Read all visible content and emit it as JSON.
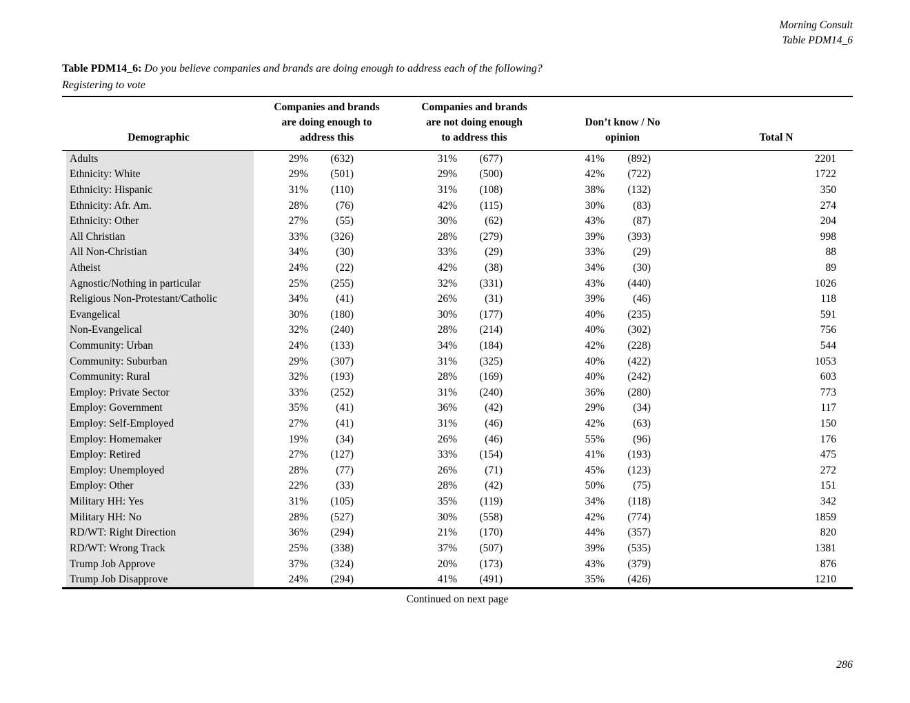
{
  "doc_header": {
    "source": "Morning Consult",
    "table_ref": "Table PDM14_6"
  },
  "title": {
    "label": "Table PDM14_6:",
    "question": "Do you believe companies and brands are doing enough to address each of the following?",
    "subtitle": "Registering to vote"
  },
  "table": {
    "headers": {
      "demographic": "Demographic",
      "col1": "Companies and brands\nare doing enough to\naddress this",
      "col2": "Companies and brands\nare not doing enough\nto address this",
      "col3": "Don’t know / No\nopinion",
      "total": "Total N"
    },
    "rows": [
      {
        "label": "Adults",
        "pct1": "29%",
        "n1": "(632)",
        "pct2": "31%",
        "n2": "(677)",
        "pct3": "41%",
        "n3": "(892)",
        "total": "2201"
      },
      {
        "label": "Ethnicity: White",
        "pct1": "29%",
        "n1": "(501)",
        "pct2": "29%",
        "n2": "(500)",
        "pct3": "42%",
        "n3": "(722)",
        "total": "1722"
      },
      {
        "label": "Ethnicity: Hispanic",
        "pct1": "31%",
        "n1": "(110)",
        "pct2": "31%",
        "n2": "(108)",
        "pct3": "38%",
        "n3": "(132)",
        "total": "350"
      },
      {
        "label": "Ethnicity: Afr. Am.",
        "pct1": "28%",
        "n1": "(76)",
        "pct2": "42%",
        "n2": "(115)",
        "pct3": "30%",
        "n3": "(83)",
        "total": "274"
      },
      {
        "label": "Ethnicity: Other",
        "pct1": "27%",
        "n1": "(55)",
        "pct2": "30%",
        "n2": "(62)",
        "pct3": "43%",
        "n3": "(87)",
        "total": "204"
      },
      {
        "label": "All Christian",
        "pct1": "33%",
        "n1": "(326)",
        "pct2": "28%",
        "n2": "(279)",
        "pct3": "39%",
        "n3": "(393)",
        "total": "998"
      },
      {
        "label": "All Non-Christian",
        "pct1": "34%",
        "n1": "(30)",
        "pct2": "33%",
        "n2": "(29)",
        "pct3": "33%",
        "n3": "(29)",
        "total": "88"
      },
      {
        "label": "Atheist",
        "pct1": "24%",
        "n1": "(22)",
        "pct2": "42%",
        "n2": "(38)",
        "pct3": "34%",
        "n3": "(30)",
        "total": "89"
      },
      {
        "label": "Agnostic/Nothing in particular",
        "pct1": "25%",
        "n1": "(255)",
        "pct2": "32%",
        "n2": "(331)",
        "pct3": "43%",
        "n3": "(440)",
        "total": "1026"
      },
      {
        "label": "Religious Non-Protestant/Catholic",
        "pct1": "34%",
        "n1": "(41)",
        "pct2": "26%",
        "n2": "(31)",
        "pct3": "39%",
        "n3": "(46)",
        "total": "118"
      },
      {
        "label": "Evangelical",
        "pct1": "30%",
        "n1": "(180)",
        "pct2": "30%",
        "n2": "(177)",
        "pct3": "40%",
        "n3": "(235)",
        "total": "591"
      },
      {
        "label": "Non-Evangelical",
        "pct1": "32%",
        "n1": "(240)",
        "pct2": "28%",
        "n2": "(214)",
        "pct3": "40%",
        "n3": "(302)",
        "total": "756"
      },
      {
        "label": "Community: Urban",
        "pct1": "24%",
        "n1": "(133)",
        "pct2": "34%",
        "n2": "(184)",
        "pct3": "42%",
        "n3": "(228)",
        "total": "544"
      },
      {
        "label": "Community: Suburban",
        "pct1": "29%",
        "n1": "(307)",
        "pct2": "31%",
        "n2": "(325)",
        "pct3": "40%",
        "n3": "(422)",
        "total": "1053"
      },
      {
        "label": "Community: Rural",
        "pct1": "32%",
        "n1": "(193)",
        "pct2": "28%",
        "n2": "(169)",
        "pct3": "40%",
        "n3": "(242)",
        "total": "603"
      },
      {
        "label": "Employ: Private Sector",
        "pct1": "33%",
        "n1": "(252)",
        "pct2": "31%",
        "n2": "(240)",
        "pct3": "36%",
        "n3": "(280)",
        "total": "773"
      },
      {
        "label": "Employ: Government",
        "pct1": "35%",
        "n1": "(41)",
        "pct2": "36%",
        "n2": "(42)",
        "pct3": "29%",
        "n3": "(34)",
        "total": "117"
      },
      {
        "label": "Employ: Self-Employed",
        "pct1": "27%",
        "n1": "(41)",
        "pct2": "31%",
        "n2": "(46)",
        "pct3": "42%",
        "n3": "(63)",
        "total": "150"
      },
      {
        "label": "Employ: Homemaker",
        "pct1": "19%",
        "n1": "(34)",
        "pct2": "26%",
        "n2": "(46)",
        "pct3": "55%",
        "n3": "(96)",
        "total": "176"
      },
      {
        "label": "Employ: Retired",
        "pct1": "27%",
        "n1": "(127)",
        "pct2": "33%",
        "n2": "(154)",
        "pct3": "41%",
        "n3": "(193)",
        "total": "475"
      },
      {
        "label": "Employ: Unemployed",
        "pct1": "28%",
        "n1": "(77)",
        "pct2": "26%",
        "n2": "(71)",
        "pct3": "45%",
        "n3": "(123)",
        "total": "272"
      },
      {
        "label": "Employ: Other",
        "pct1": "22%",
        "n1": "(33)",
        "pct2": "28%",
        "n2": "(42)",
        "pct3": "50%",
        "n3": "(75)",
        "total": "151"
      },
      {
        "label": "Military HH: Yes",
        "pct1": "31%",
        "n1": "(105)",
        "pct2": "35%",
        "n2": "(119)",
        "pct3": "34%",
        "n3": "(118)",
        "total": "342"
      },
      {
        "label": "Military HH: No",
        "pct1": "28%",
        "n1": "(527)",
        "pct2": "30%",
        "n2": "(558)",
        "pct3": "42%",
        "n3": "(774)",
        "total": "1859"
      },
      {
        "label": "RD/WT: Right Direction",
        "pct1": "36%",
        "n1": "(294)",
        "pct2": "21%",
        "n2": "(170)",
        "pct3": "44%",
        "n3": "(357)",
        "total": "820"
      },
      {
        "label": "RD/WT: Wrong Track",
        "pct1": "25%",
        "n1": "(338)",
        "pct2": "37%",
        "n2": "(507)",
        "pct3": "39%",
        "n3": "(535)",
        "total": "1381"
      },
      {
        "label": "Trump Job Approve",
        "pct1": "37%",
        "n1": "(324)",
        "pct2": "20%",
        "n2": "(173)",
        "pct3": "43%",
        "n3": "(379)",
        "total": "876"
      },
      {
        "label": "Trump Job Disapprove",
        "pct1": "24%",
        "n1": "(294)",
        "pct2": "41%",
        "n2": "(491)",
        "pct3": "35%",
        "n3": "(426)",
        "total": "1210"
      }
    ]
  },
  "footer": {
    "continued": "Continued on next page",
    "page_number": "286"
  },
  "colors": {
    "row_label_bg": "#e2e2e2",
    "text": "#000000",
    "rule": "#000000"
  }
}
